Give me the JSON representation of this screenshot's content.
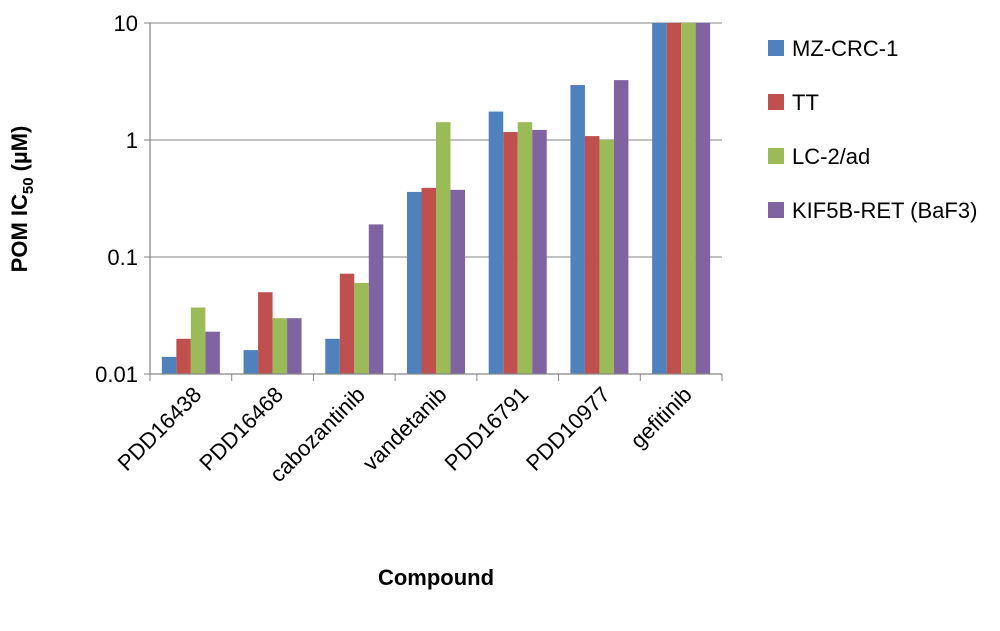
{
  "chart_data": {
    "type": "bar",
    "xlabel": "Compound",
    "ylabel_main": "POM IC",
    "ylabel_sub": "50",
    "ylabel_unit": " (µM)",
    "y_scale": "log",
    "ylim": [
      0.01,
      10
    ],
    "y_ticks": [
      {
        "value": 10,
        "label": "10"
      },
      {
        "value": 1,
        "label": "1"
      },
      {
        "value": 0.1,
        "label": "0.1"
      },
      {
        "value": 0.01,
        "label": "0.01"
      }
    ],
    "gridlines": true,
    "legend_position": "right",
    "categories": [
      "PDD16438",
      "PDD16468",
      "cabozantinib",
      "vandetanib",
      "PDD16791",
      "PDD10977",
      "gefitinib"
    ],
    "series": [
      {
        "name": "MZ-CRC-1",
        "color": "#4F81BD",
        "values": [
          0.014,
          0.016,
          0.02,
          0.36,
          1.75,
          2.95,
          10
        ]
      },
      {
        "name": "TT",
        "color": "#C0504D",
        "values": [
          0.02,
          0.05,
          0.072,
          0.39,
          1.17,
          1.08,
          10
        ]
      },
      {
        "name": "LC-2/ad",
        "color": "#9BBB59",
        "values": [
          0.037,
          0.03,
          0.06,
          1.42,
          1.42,
          1.0,
          10
        ]
      },
      {
        "name": "KIF5B-RET (BaF3)",
        "color": "#8064A2",
        "values": [
          0.023,
          0.03,
          0.19,
          0.375,
          1.22,
          3.25,
          10
        ]
      }
    ]
  }
}
